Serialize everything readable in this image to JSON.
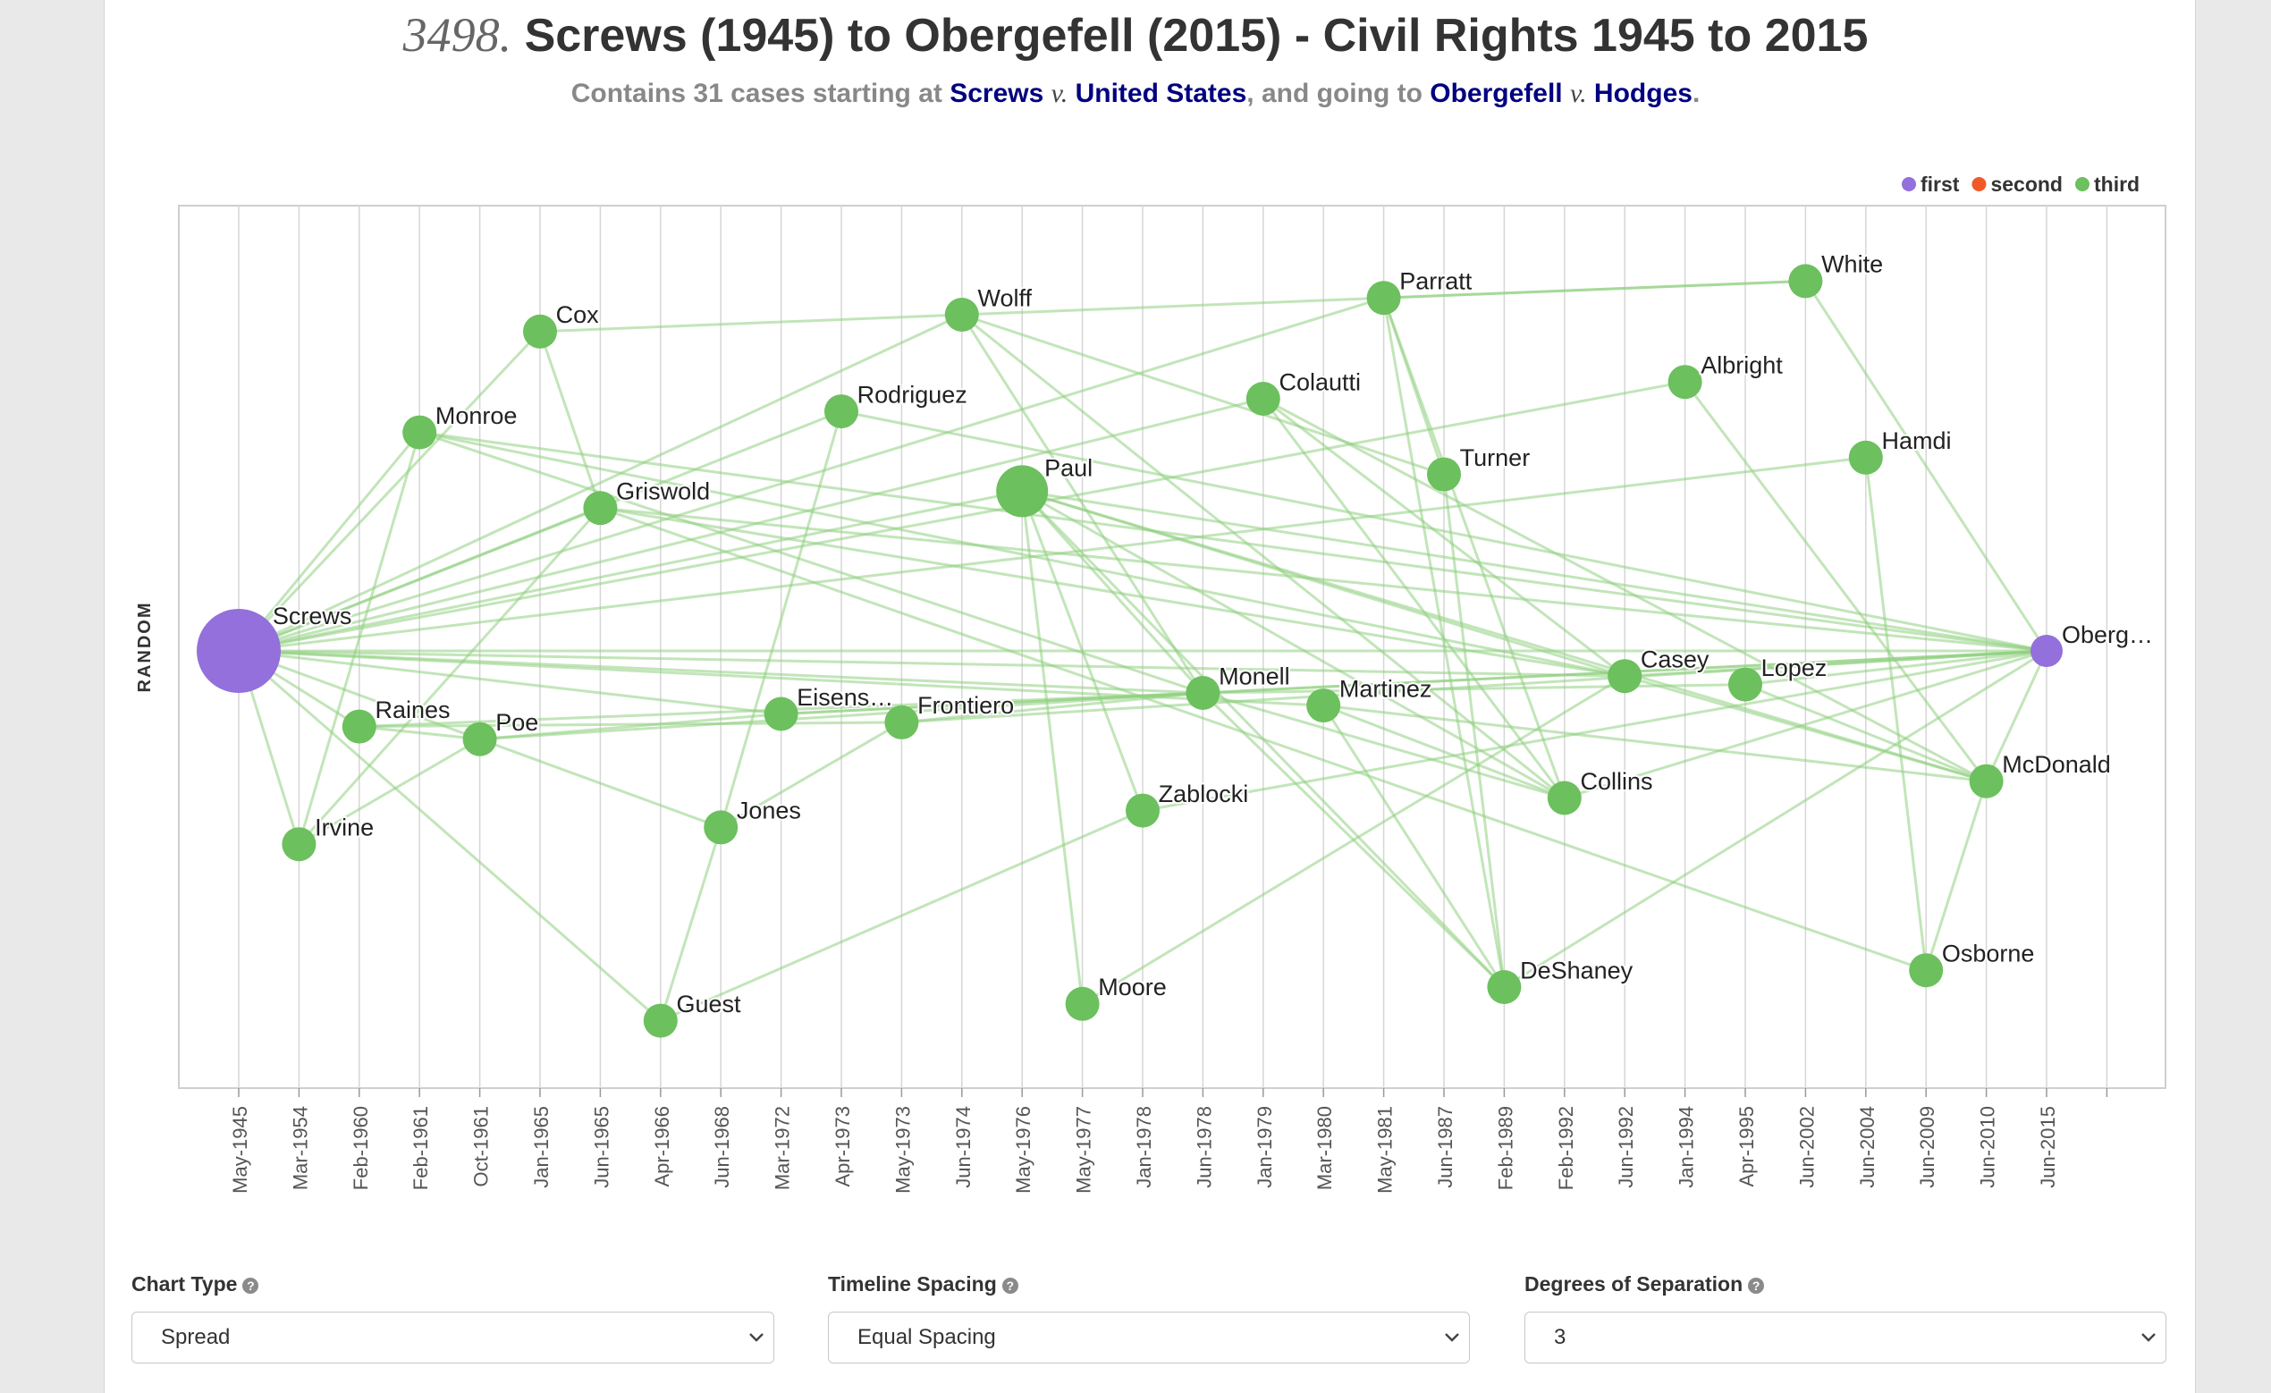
{
  "header": {
    "number": "3498.",
    "title": "Screws (1945) to Obergefell (2015) - Civil Rights 1945 to 2015",
    "subtitle": {
      "prefix": "Contains 31 cases starting at ",
      "start_a": "Screws",
      "v1": "v.",
      "start_b": "United States",
      "mid": ", and going to ",
      "end_a": "Obergefell",
      "v2": "v.",
      "end_b": "Hodges",
      "suffix": "."
    }
  },
  "chart_data": {
    "type": "scatter",
    "ylabel": "RANDOM",
    "legend": [
      {
        "name": "first",
        "color": "#9370db"
      },
      {
        "name": "second",
        "color": "#f05a28"
      },
      {
        "name": "third",
        "color": "#6cc05e"
      }
    ],
    "legend_position": "top-right",
    "x_ticks": [
      "May-1945",
      "Mar-1954",
      "Feb-1960",
      "Feb-1961",
      "Oct-1961",
      "Jan-1965",
      "Jun-1965",
      "Apr-1966",
      "Jun-1968",
      "Mar-1972",
      "Apr-1973",
      "May-1973",
      "Jun-1974",
      "May-1976",
      "May-1977",
      "Jan-1978",
      "Jun-1978",
      "Jan-1979",
      "Mar-1980",
      "May-1981",
      "Jun-1987",
      "Feb-1989",
      "Feb-1992",
      "Jun-1992",
      "Jan-1994",
      "Apr-1995",
      "Jun-2002",
      "Jun-2004",
      "Jun-2009",
      "Jun-2010",
      "Jun-2015"
    ],
    "grid": true,
    "nodes": [
      {
        "id": "Screws",
        "label": "Screws",
        "x": "May-1945",
        "y": 0.5,
        "group": "first",
        "size": "large"
      },
      {
        "id": "Irvine",
        "label": "Irvine",
        "x": "Mar-1954",
        "y": 0.73,
        "group": "third"
      },
      {
        "id": "Raines",
        "label": "Raines",
        "x": "Feb-1960",
        "y": 0.59,
        "group": "third"
      },
      {
        "id": "Monroe",
        "label": "Monroe",
        "x": "Feb-1961",
        "y": 0.24,
        "group": "third"
      },
      {
        "id": "Poe",
        "label": "Poe",
        "x": "Oct-1961",
        "y": 0.605,
        "group": "third"
      },
      {
        "id": "Cox",
        "label": "Cox",
        "x": "Jan-1965",
        "y": 0.12,
        "group": "third"
      },
      {
        "id": "Griswold",
        "label": "Griswold",
        "x": "Jun-1965",
        "y": 0.33,
        "group": "third"
      },
      {
        "id": "Guest",
        "label": "Guest",
        "x": "Apr-1966",
        "y": 0.94,
        "group": "third"
      },
      {
        "id": "Jones",
        "label": "Jones",
        "x": "Jun-1968",
        "y": 0.71,
        "group": "third"
      },
      {
        "id": "Eisens",
        "label": "Eisens…",
        "x": "Mar-1972",
        "y": 0.575,
        "group": "third"
      },
      {
        "id": "Rodriguez",
        "label": "Rodriguez",
        "x": "Apr-1973",
        "y": 0.215,
        "group": "third"
      },
      {
        "id": "Frontiero",
        "label": "Frontiero",
        "x": "May-1973",
        "y": 0.585,
        "group": "third"
      },
      {
        "id": "Wolff",
        "label": "Wolff",
        "x": "Jun-1974",
        "y": 0.1,
        "group": "third"
      },
      {
        "id": "Paul",
        "label": "Paul",
        "x": "May-1976",
        "y": 0.31,
        "group": "third",
        "size": "medium"
      },
      {
        "id": "Moore",
        "label": "Moore",
        "x": "May-1977",
        "y": 0.92,
        "group": "third"
      },
      {
        "id": "Zablocki",
        "label": "Zablocki",
        "x": "Jan-1978",
        "y": 0.69,
        "group": "third"
      },
      {
        "id": "Monell",
        "label": "Monell",
        "x": "Jun-1978",
        "y": 0.55,
        "group": "third"
      },
      {
        "id": "Colautti",
        "label": "Colautti",
        "x": "Jan-1979",
        "y": 0.2,
        "group": "third"
      },
      {
        "id": "Martinez",
        "label": "Martinez",
        "x": "Mar-1980",
        "y": 0.565,
        "group": "third"
      },
      {
        "id": "Parratt",
        "label": "Parratt",
        "x": "May-1981",
        "y": 0.08,
        "group": "third"
      },
      {
        "id": "Turner",
        "label": "Turner",
        "x": "Jun-1987",
        "y": 0.29,
        "group": "third"
      },
      {
        "id": "DeShaney",
        "label": "DeShaney",
        "x": "Feb-1989",
        "y": 0.9,
        "group": "third"
      },
      {
        "id": "Collins",
        "label": "Collins",
        "x": "Feb-1992",
        "y": 0.675,
        "group": "third"
      },
      {
        "id": "Casey",
        "label": "Casey",
        "x": "Jun-1992",
        "y": 0.53,
        "group": "third"
      },
      {
        "id": "Albright",
        "label": "Albright",
        "x": "Jan-1994",
        "y": 0.18,
        "group": "third"
      },
      {
        "id": "Lopez",
        "label": "Lopez",
        "x": "Apr-1995",
        "y": 0.54,
        "group": "third"
      },
      {
        "id": "White",
        "label": "White",
        "x": "Jun-2002",
        "y": 0.06,
        "group": "third"
      },
      {
        "id": "Hamdi",
        "label": "Hamdi",
        "x": "Jun-2004",
        "y": 0.27,
        "group": "third"
      },
      {
        "id": "Osborne",
        "label": "Osborne",
        "x": "Jun-2009",
        "y": 0.88,
        "group": "third"
      },
      {
        "id": "McDonald",
        "label": "McDonald",
        "x": "Jun-2010",
        "y": 0.655,
        "group": "third"
      },
      {
        "id": "Obergefell",
        "label": "Oberg…",
        "x": "Jun-2015",
        "y": 0.5,
        "group": "first"
      }
    ],
    "links": [
      [
        "Screws",
        "Irvine"
      ],
      [
        "Screws",
        "Raines"
      ],
      [
        "Screws",
        "Monroe"
      ],
      [
        "Screws",
        "Poe"
      ],
      [
        "Screws",
        "Cox"
      ],
      [
        "Screws",
        "Griswold"
      ],
      [
        "Screws",
        "Guest"
      ],
      [
        "Screws",
        "Wolff"
      ],
      [
        "Screws",
        "Paul"
      ],
      [
        "Screws",
        "Monell"
      ],
      [
        "Screws",
        "Parratt"
      ],
      [
        "Screws",
        "Colautti"
      ],
      [
        "Screws",
        "Albright"
      ],
      [
        "Screws",
        "Hamdi"
      ],
      [
        "Screws",
        "Martinez"
      ],
      [
        "Screws",
        "Casey"
      ],
      [
        "Screws",
        "Obergefell"
      ],
      [
        "Screws",
        "Eisens"
      ],
      [
        "Screws",
        "Rodriguez"
      ],
      [
        "Irvine",
        "Monroe"
      ],
      [
        "Irvine",
        "Griswold"
      ],
      [
        "Irvine",
        "Poe"
      ],
      [
        "Raines",
        "Poe"
      ],
      [
        "Raines",
        "Monell"
      ],
      [
        "Raines",
        "Frontiero"
      ],
      [
        "Monroe",
        "Monell"
      ],
      [
        "Monroe",
        "Obergefell"
      ],
      [
        "Monroe",
        "Casey"
      ],
      [
        "Poe",
        "Jones"
      ],
      [
        "Poe",
        "Eisens"
      ],
      [
        "Poe",
        "Monell"
      ],
      [
        "Cox",
        "Wolff"
      ],
      [
        "Cox",
        "Griswold"
      ],
      [
        "Griswold",
        "Obergefell"
      ],
      [
        "Griswold",
        "Casey"
      ],
      [
        "Guest",
        "Jones"
      ],
      [
        "Guest",
        "Zablocki"
      ],
      [
        "Jones",
        "Rodriguez"
      ],
      [
        "Jones",
        "Frontiero"
      ],
      [
        "Eisens",
        "Obergefell"
      ],
      [
        "Eisens",
        "Monell"
      ],
      [
        "Rodriguez",
        "Obergefell"
      ],
      [
        "Frontiero",
        "Obergefell"
      ],
      [
        "Frontiero",
        "Monell"
      ],
      [
        "Wolff",
        "White"
      ],
      [
        "Wolff",
        "Monell"
      ],
      [
        "Wolff",
        "Collins"
      ],
      [
        "Wolff",
        "Turner"
      ],
      [
        "Paul",
        "Moore"
      ],
      [
        "Paul",
        "Zablocki"
      ],
      [
        "Paul",
        "Monell"
      ],
      [
        "Paul",
        "DeShaney"
      ],
      [
        "Paul",
        "Casey"
      ],
      [
        "Paul",
        "McDonald"
      ],
      [
        "Paul",
        "Obergefell"
      ],
      [
        "Paul",
        "Collins"
      ],
      [
        "Moore",
        "Casey"
      ],
      [
        "Zablocki",
        "Obergefell"
      ],
      [
        "Monell",
        "DeShaney"
      ],
      [
        "Monell",
        "Collins"
      ],
      [
        "Monell",
        "Lopez"
      ],
      [
        "Monell",
        "Obergefell"
      ],
      [
        "Colautti",
        "Casey"
      ],
      [
        "Colautti",
        "Collins"
      ],
      [
        "Colautti",
        "McDonald"
      ],
      [
        "Martinez",
        "DeShaney"
      ],
      [
        "Martinez",
        "Collins"
      ],
      [
        "Martinez",
        "McDonald"
      ],
      [
        "Parratt",
        "White"
      ],
      [
        "Parratt",
        "DeShaney"
      ],
      [
        "Parratt",
        "Collins"
      ],
      [
        "Parratt",
        "Turner"
      ],
      [
        "Turner",
        "DeShaney"
      ],
      [
        "DeShaney",
        "Obergefell"
      ],
      [
        "Collins",
        "Obergefell"
      ],
      [
        "Casey",
        "Obergefell"
      ],
      [
        "Casey",
        "McDonald"
      ],
      [
        "Albright",
        "McDonald"
      ],
      [
        "Lopez",
        "Obergefell"
      ],
      [
        "Lopez",
        "McDonald"
      ],
      [
        "White",
        "Obergefell"
      ],
      [
        "Hamdi",
        "Osborne"
      ],
      [
        "Osborne",
        "McDonald"
      ],
      [
        "Osborne",
        "Griswold"
      ],
      [
        "McDonald",
        "Obergefell"
      ]
    ]
  },
  "controls": [
    {
      "label": "Chart Type",
      "value": "Spread"
    },
    {
      "label": "Timeline Spacing",
      "value": "Equal Spacing"
    },
    {
      "label": "Degrees of Separation",
      "value": "3"
    }
  ]
}
